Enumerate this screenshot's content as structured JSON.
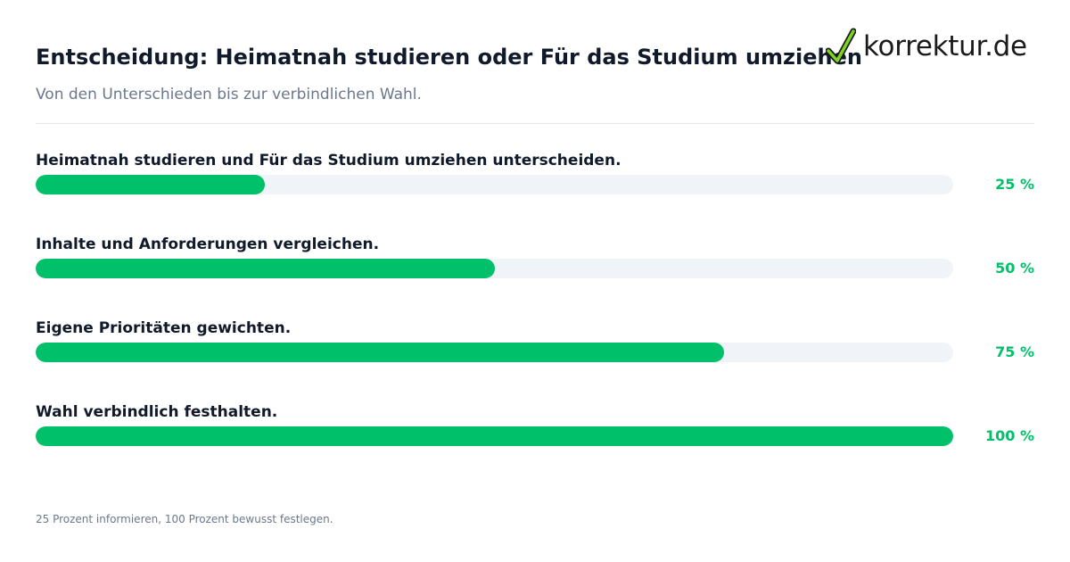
{
  "header": {
    "title": "Entscheidung: Heimatnah studieren oder Für das Studium umziehen",
    "subtitle": "Von den Unterschieden bis zur verbindlichen Wahl."
  },
  "brand": {
    "name": "korrektur.de",
    "icon": "checkmark-icon",
    "check_color": "#7ed321",
    "check_outline": "#1a1a1a"
  },
  "colors": {
    "accent": "#00c16a",
    "track": "#f0f3f7",
    "title": "#111a2b",
    "muted": "#6b778c"
  },
  "chart_data": {
    "type": "bar",
    "orientation": "horizontal",
    "categories": [
      "Heimatnah studieren und Für das Studium umziehen unterscheiden.",
      "Inhalte und Anforderungen vergleichen.",
      "Eigene Prioritäten gewichten.",
      "Wahl verbindlich festhalten."
    ],
    "values": [
      25,
      50,
      75,
      100
    ],
    "value_labels": [
      "25 %",
      "50 %",
      "75 %",
      "100 %"
    ],
    "xlim": [
      0,
      100
    ],
    "grid": false,
    "legend": "none"
  },
  "footnote": "25 Prozent informieren, 100 Prozent bewusst festlegen."
}
